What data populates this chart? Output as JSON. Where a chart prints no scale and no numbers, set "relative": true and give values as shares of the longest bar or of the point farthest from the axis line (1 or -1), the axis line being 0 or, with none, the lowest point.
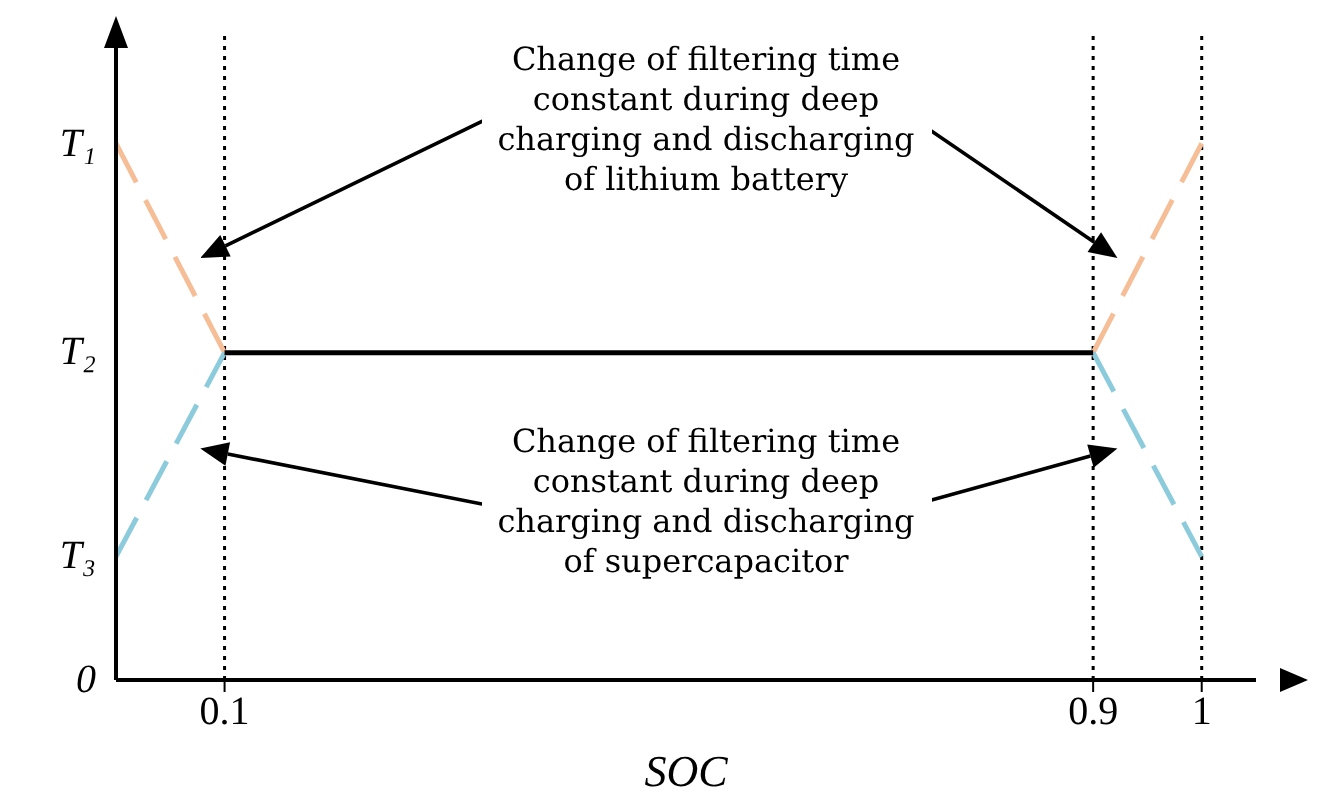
{
  "chart_data": {
    "type": "line",
    "relative": true,
    "xlabel": "SOC",
    "xlim": [
      0,
      1.05
    ],
    "xticks": [
      0.1,
      0.9,
      1
    ],
    "series": [
      {
        "color": "#f6be96",
        "line_style": "dashed",
        "x": [
          0,
          0.1,
          0.5,
          0.9,
          1
        ],
        "values": [
          1,
          0.61,
          null,
          0.61,
          1
        ]
      },
      {
        "color": "#8ccbdc",
        "line_style": "dashed",
        "x": [
          0,
          0.1,
          0.5,
          0.9,
          1
        ],
        "values": [
          0.23,
          0.61,
          null,
          0.61,
          0.23
        ]
      },
      {
        "color": "#000000",
        "line_style": "solid",
        "x": [
          0.1,
          0.9
        ],
        "values": [
          0.61,
          0.61
        ]
      }
    ],
    "ref_lines": [
      {
        "axis": "x",
        "value": 0.1,
        "color": "#000000",
        "line_style": "dotted"
      },
      {
        "axis": "x",
        "value": 0.9,
        "color": "#000000",
        "line_style": "dotted"
      },
      {
        "axis": "x",
        "value": 1,
        "color": "#000000",
        "line_style": "dotted"
      }
    ],
    "annotations": [
      "Change of filtering time constant during deep charging and discharging of lithium battery",
      "Change of filtering time constant during deep charging and discharging of supercapacitor",
      "T₁",
      "T₂",
      "T₃",
      "0"
    ]
  }
}
